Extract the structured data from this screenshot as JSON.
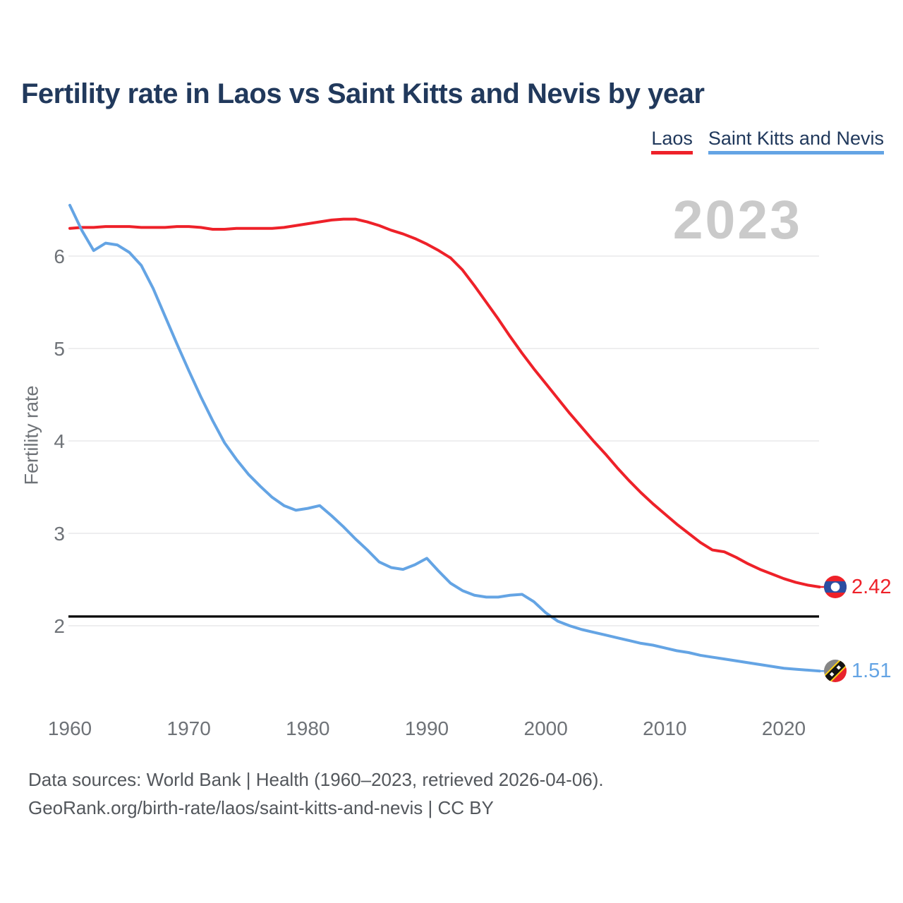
{
  "page": {
    "title": "Fertility rate in Laos vs Saint Kitts and Nevis by year",
    "watermark_year": "2023"
  },
  "legend": {
    "items": [
      {
        "label": "Laos",
        "color": "#ee2129",
        "icon": "laos-flag-icon"
      },
      {
        "label": "Saint Kitts and Nevis",
        "color": "#64a4e4",
        "icon": "saint-kitts-and-nevis-flag-icon"
      }
    ]
  },
  "footer": {
    "line1": "Data sources: World Bank | Health (1960–2023, retrieved 2026-04-06).",
    "line2": "GeoRank.org/birth-rate/laos/saint-kitts-and-nevis | CC BY"
  },
  "colors": {
    "title_navy": "#21395c",
    "tick_gray": "#6e7277",
    "gridline": "#e9e9ea",
    "watermark_gray": "#cacaca",
    "reference_black": "#000000"
  },
  "chart_data": {
    "type": "line",
    "title": "Fertility rate in Laos vs Saint Kitts and Nevis by year",
    "xlabel": "",
    "ylabel": "Fertility rate",
    "grid": true,
    "legend_position": "top-right",
    "x_range": [
      1960,
      2023
    ],
    "ylim": [
      1.3,
      6.6
    ],
    "x_ticks": [
      1960,
      1970,
      1980,
      1990,
      2000,
      2010,
      2020
    ],
    "y_ticks": [
      2,
      3,
      4,
      5,
      6
    ],
    "reference_line": {
      "value": 2.1,
      "color": "#000000"
    },
    "x": [
      1960,
      1961,
      1962,
      1963,
      1964,
      1965,
      1966,
      1967,
      1968,
      1969,
      1970,
      1971,
      1972,
      1973,
      1974,
      1975,
      1976,
      1977,
      1978,
      1979,
      1980,
      1981,
      1982,
      1983,
      1984,
      1985,
      1986,
      1987,
      1988,
      1989,
      1990,
      1991,
      1992,
      1993,
      1994,
      1995,
      1996,
      1997,
      1998,
      1999,
      2000,
      2001,
      2002,
      2003,
      2004,
      2005,
      2006,
      2007,
      2008,
      2009,
      2010,
      2011,
      2012,
      2013,
      2014,
      2015,
      2016,
      2017,
      2018,
      2019,
      2020,
      2021,
      2022,
      2023
    ],
    "series": [
      {
        "name": "Laos",
        "color": "#ee2129",
        "end_label": "2.42",
        "values": [
          6.3,
          6.31,
          6.31,
          6.32,
          6.32,
          6.32,
          6.31,
          6.31,
          6.31,
          6.32,
          6.32,
          6.31,
          6.29,
          6.29,
          6.3,
          6.3,
          6.3,
          6.3,
          6.31,
          6.33,
          6.35,
          6.37,
          6.39,
          6.4,
          6.4,
          6.37,
          6.33,
          6.28,
          6.24,
          6.19,
          6.13,
          6.06,
          5.98,
          5.85,
          5.68,
          5.5,
          5.32,
          5.13,
          4.95,
          4.78,
          4.62,
          4.46,
          4.3,
          4.15,
          4.0,
          3.86,
          3.71,
          3.57,
          3.44,
          3.32,
          3.21,
          3.1,
          3.0,
          2.9,
          2.82,
          2.8,
          2.74,
          2.67,
          2.61,
          2.56,
          2.51,
          2.47,
          2.44,
          2.42
        ]
      },
      {
        "name": "Saint Kitts and Nevis",
        "color": "#64a4e4",
        "end_label": "1.51",
        "values": [
          6.55,
          6.28,
          6.06,
          6.14,
          6.12,
          6.04,
          5.9,
          5.65,
          5.35,
          5.05,
          4.76,
          4.48,
          4.22,
          3.98,
          3.8,
          3.64,
          3.51,
          3.39,
          3.3,
          3.25,
          3.27,
          3.3,
          3.19,
          3.07,
          2.94,
          2.82,
          2.69,
          2.63,
          2.61,
          2.66,
          2.73,
          2.59,
          2.46,
          2.38,
          2.33,
          2.31,
          2.31,
          2.33,
          2.34,
          2.26,
          2.14,
          2.05,
          2.0,
          1.96,
          1.93,
          1.9,
          1.87,
          1.84,
          1.81,
          1.79,
          1.76,
          1.73,
          1.71,
          1.68,
          1.66,
          1.64,
          1.62,
          1.6,
          1.58,
          1.56,
          1.54,
          1.53,
          1.52,
          1.51
        ]
      }
    ]
  }
}
